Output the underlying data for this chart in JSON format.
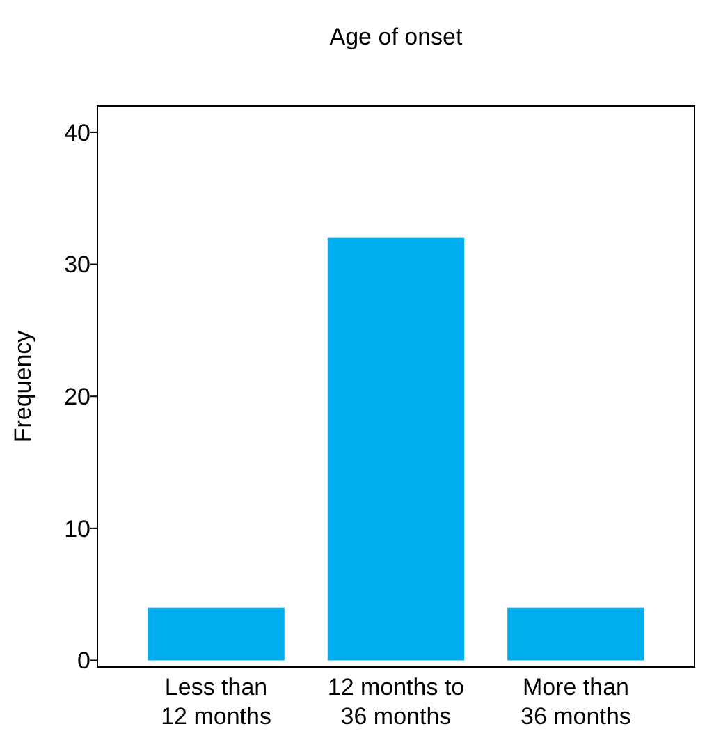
{
  "chart_data": {
    "type": "bar",
    "title": "Age of onset",
    "ylabel": "Frequency",
    "categories": [
      "Less than 12 months",
      "12 months to 36 months",
      "More than 36 months"
    ],
    "values": [
      4,
      32,
      4
    ],
    "color": "#00aeef",
    "ylim": [
      -0.5,
      42
    ],
    "yticks": [
      0,
      10,
      20,
      30,
      40
    ]
  }
}
